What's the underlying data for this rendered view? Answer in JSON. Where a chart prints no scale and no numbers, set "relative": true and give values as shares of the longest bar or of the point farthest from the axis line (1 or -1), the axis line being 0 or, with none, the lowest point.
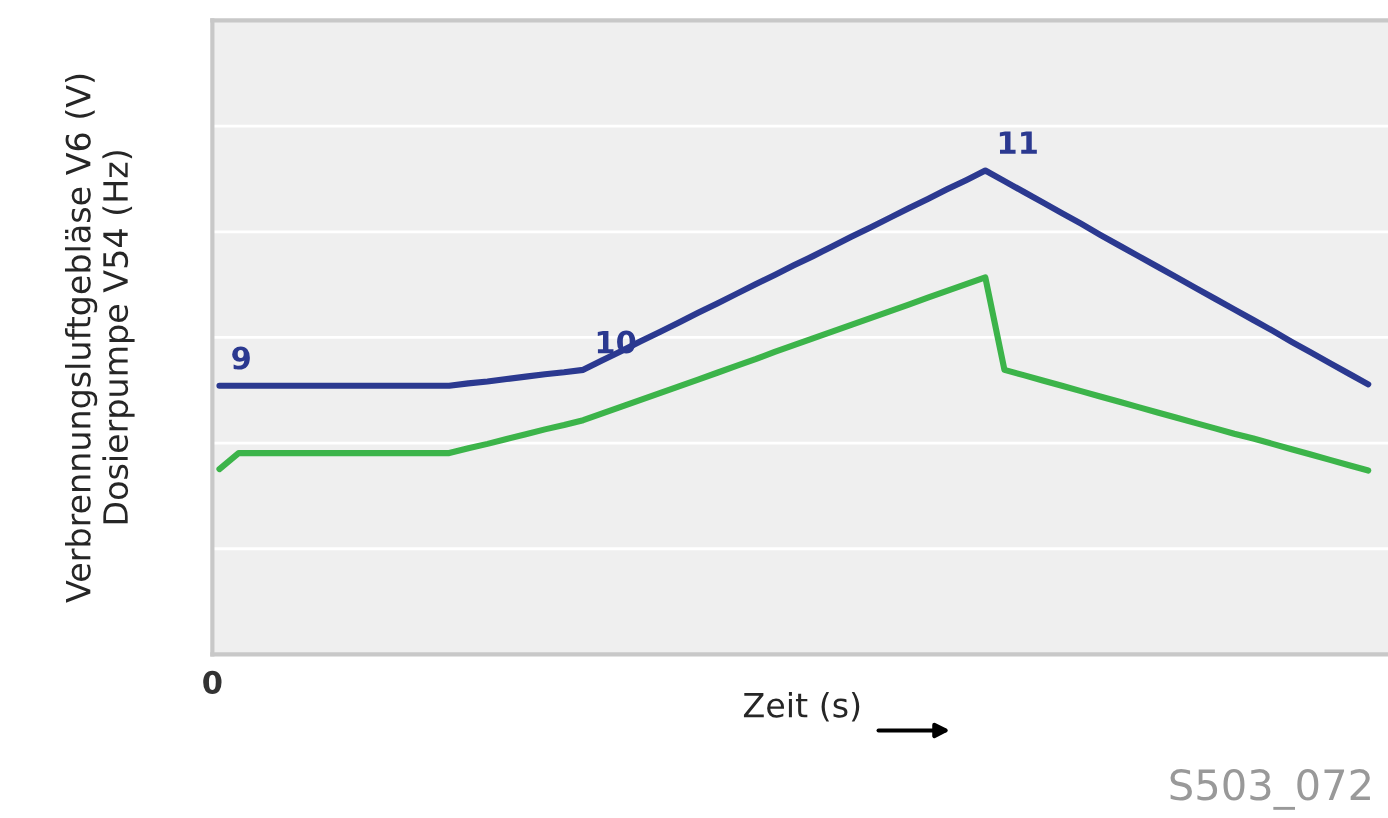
{
  "chart_data": {
    "type": "line",
    "relative": true,
    "xlabel": "Zeit (s)",
    "ylabel": "Verbrennungsluftgebläse V6 (V)\nDosierpumpe V54 (Hz)",
    "grid": "y",
    "marker": "none",
    "line_style": "solid",
    "categories": [
      null,
      null,
      null,
      null,
      null,
      null,
      null,
      null,
      null,
      null,
      null,
      null,
      null,
      null,
      null,
      null,
      null,
      null,
      null,
      null,
      null,
      null,
      null,
      null,
      null,
      null,
      null,
      null,
      null,
      null,
      null,
      null,
      null,
      null,
      null,
      null,
      null,
      null,
      null,
      null,
      null,
      null,
      null,
      null,
      null,
      null,
      null,
      null,
      null,
      null,
      null,
      null,
      null,
      null,
      null,
      null,
      null,
      null,
      null,
      null,
      null
    ],
    "series": [
      {
        "color": "#2b3990",
        "values": [
          0.555,
          0.555,
          0.555,
          0.555,
          0.555,
          0.555,
          0.555,
          0.555,
          0.555,
          0.555,
          0.555,
          0.555,
          0.555,
          0.56,
          0.564,
          0.569,
          0.574,
          0.579,
          0.583,
          0.588,
          0.608,
          0.627,
          0.647,
          0.666,
          0.686,
          0.706,
          0.725,
          0.745,
          0.765,
          0.784,
          0.804,
          0.823,
          0.843,
          0.863,
          0.882,
          0.902,
          0.922,
          0.941,
          0.961,
          0.98,
          1,
          0.978,
          0.956,
          0.934,
          0.912,
          0.89,
          0.867,
          0.845,
          0.823,
          0.801,
          0.779,
          0.757,
          0.735,
          0.713,
          0.691,
          0.669,
          0.646,
          0.624,
          0.602,
          0.58,
          0.558
        ]
      },
      {
        "color": "#3cb44a",
        "values": [
          0.383,
          0.416,
          0.416,
          0.416,
          0.416,
          0.416,
          0.416,
          0.416,
          0.416,
          0.416,
          0.416,
          0.416,
          0.416,
          0.426,
          0.435,
          0.445,
          0.455,
          0.465,
          0.474,
          0.484,
          0.498,
          0.512,
          0.526,
          0.54,
          0.554,
          0.568,
          0.582,
          0.596,
          0.61,
          0.625,
          0.639,
          0.653,
          0.667,
          0.681,
          0.695,
          0.709,
          0.723,
          0.737,
          0.751,
          0.765,
          0.779,
          0.588,
          0.577,
          0.566,
          0.555,
          0.544,
          0.533,
          0.522,
          0.511,
          0.5,
          0.489,
          0.478,
          0.467,
          0.456,
          0.446,
          0.435,
          0.424,
          0.413,
          0.402,
          0.391,
          0.38
        ]
      }
    ],
    "annotations": [
      "9",
      "10",
      "11",
      "0",
      "S503_072"
    ]
  }
}
